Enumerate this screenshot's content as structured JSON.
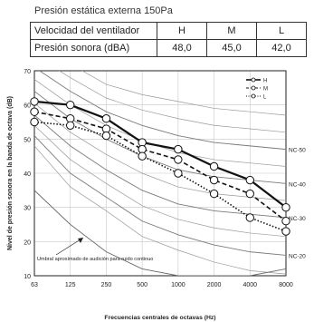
{
  "header": {
    "title": "Presión estática externa 150Pa"
  },
  "speed_table": {
    "rows": [
      {
        "label": "Velocidad del ventilador",
        "values": [
          "H",
          "M",
          "L"
        ]
      },
      {
        "label": "Presión sonora (dBA)",
        "values": [
          "48,0",
          "45,0",
          "42,0"
        ]
      }
    ]
  },
  "chart_data": {
    "type": "line",
    "x_scale": "log2",
    "categories": [
      "63",
      "125",
      "250",
      "500",
      "1000",
      "2000",
      "4000",
      "8000"
    ],
    "x": [
      63,
      125,
      250,
      500,
      1000,
      2000,
      4000,
      8000
    ],
    "xlabel": "Frecuencias centrales de octavas (Hz)",
    "ylabel": "Nivel de presión sonora en la banda de octava (dB)",
    "ylim": [
      10,
      70
    ],
    "yticks": [
      10,
      20,
      30,
      40,
      50,
      60,
      70
    ],
    "grid": true,
    "legend_position": "top-right",
    "series": [
      {
        "name": "H",
        "style": "solid",
        "values": [
          61,
          60,
          56,
          49,
          47,
          42,
          38,
          30
        ]
      },
      {
        "name": "M",
        "style": "dashed",
        "values": [
          58,
          56,
          53,
          47,
          44,
          38,
          34,
          26
        ]
      },
      {
        "name": "L",
        "style": "dotted",
        "values": [
          55,
          54,
          51,
          45,
          40,
          34,
          27,
          23
        ]
      }
    ],
    "nc_curves": [
      {
        "name": "NC-20",
        "values": [
          51,
          40,
          33,
          26,
          22,
          19,
          17,
          16
        ]
      },
      {
        "name": "NC-30",
        "values": [
          57,
          48,
          41,
          35,
          31,
          29,
          28,
          27
        ]
      },
      {
        "name": "NC-40",
        "values": [
          64,
          56,
          50,
          45,
          41,
          39,
          38,
          37
        ]
      },
      {
        "name": "NC-50",
        "values": [
          71,
          64,
          58,
          54,
          51,
          49,
          48,
          47
        ]
      }
    ],
    "threshold_curve": {
      "values": [
        35,
        25,
        17,
        12,
        10,
        10,
        10,
        12
      ]
    },
    "annotations": {
      "threshold_label": "Umbral aproximado de audición para ruido continuo"
    }
  }
}
